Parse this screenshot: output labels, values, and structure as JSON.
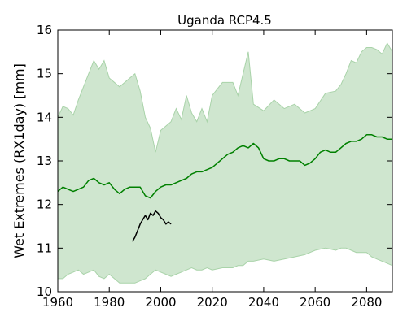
{
  "chart_data": {
    "type": "area",
    "title": "Uganda  RCP4.5",
    "xlabel": "",
    "ylabel": "Wet Extremes (RX1day) [mm]",
    "xlim": [
      1960,
      2090
    ],
    "ylim": [
      10,
      16
    ],
    "xticks": [
      1960,
      1980,
      2000,
      2020,
      2040,
      2060,
      2080
    ],
    "yticks": [
      10,
      11,
      12,
      13,
      14,
      15,
      16
    ],
    "grid": false,
    "legend": "none",
    "colors": {
      "band_fill": "#cfe6cf",
      "band_edge": "#a9d3a9",
      "median_line": "#008000",
      "observed_line": "#000000",
      "frame": "#000000"
    },
    "series": [
      {
        "kind": "band",
        "x": [
          1960,
          1962,
          1964,
          1966,
          1968,
          1970,
          1972,
          1974,
          1976,
          1978,
          1980,
          1984,
          1988,
          1990,
          1992,
          1994,
          1996,
          1998,
          2000,
          2002,
          2004,
          2006,
          2008,
          2010,
          2012,
          2014,
          2016,
          2018,
          2020,
          2024,
          2028,
          2030,
          2032,
          2034,
          2036,
          2040,
          2044,
          2048,
          2052,
          2056,
          2060,
          2064,
          2068,
          2070,
          2072,
          2074,
          2076,
          2078,
          2080,
          2082,
          2084,
          2086,
          2088,
          2090
        ],
        "upper": [
          14.0,
          14.25,
          14.2,
          14.05,
          14.4,
          14.7,
          15.0,
          15.3,
          15.1,
          15.3,
          14.9,
          14.7,
          14.9,
          15.0,
          14.6,
          14.0,
          13.75,
          13.2,
          13.7,
          13.8,
          13.9,
          14.2,
          13.95,
          14.5,
          14.1,
          13.9,
          14.2,
          13.9,
          14.5,
          14.8,
          14.8,
          14.5,
          15.0,
          15.5,
          14.3,
          14.15,
          14.4,
          14.2,
          14.3,
          14.1,
          14.2,
          14.55,
          14.6,
          14.75,
          15.0,
          15.3,
          15.25,
          15.5,
          15.6,
          15.6,
          15.55,
          15.45,
          15.7,
          15.5
        ],
        "lower": [
          10.3,
          10.3,
          10.4,
          10.45,
          10.5,
          10.4,
          10.45,
          10.5,
          10.35,
          10.3,
          10.4,
          10.2,
          10.2,
          10.2,
          10.25,
          10.3,
          10.4,
          10.5,
          10.45,
          10.4,
          10.35,
          10.4,
          10.45,
          10.5,
          10.55,
          10.5,
          10.5,
          10.55,
          10.5,
          10.55,
          10.55,
          10.6,
          10.6,
          10.7,
          10.7,
          10.75,
          10.7,
          10.75,
          10.8,
          10.85,
          10.95,
          11.0,
          10.95,
          11.0,
          11.0,
          10.95,
          10.9,
          10.9,
          10.9,
          10.8,
          10.75,
          10.7,
          10.65,
          10.6
        ]
      },
      {
        "kind": "line",
        "x": [
          1960,
          1962,
          1964,
          1966,
          1968,
          1970,
          1972,
          1974,
          1976,
          1978,
          1980,
          1982,
          1984,
          1986,
          1988,
          1990,
          1992,
          1994,
          1996,
          1998,
          2000,
          2002,
          2004,
          2006,
          2008,
          2010,
          2012,
          2014,
          2016,
          2018,
          2020,
          2022,
          2024,
          2026,
          2028,
          2030,
          2032,
          2034,
          2036,
          2038,
          2040,
          2042,
          2044,
          2046,
          2048,
          2050,
          2052,
          2054,
          2056,
          2058,
          2060,
          2062,
          2064,
          2066,
          2068,
          2070,
          2072,
          2074,
          2076,
          2078,
          2080,
          2082,
          2084,
          2086,
          2088,
          2090
        ],
        "values": [
          12.3,
          12.4,
          12.35,
          12.3,
          12.35,
          12.4,
          12.55,
          12.6,
          12.5,
          12.45,
          12.5,
          12.35,
          12.25,
          12.35,
          12.4,
          12.4,
          12.4,
          12.2,
          12.15,
          12.3,
          12.4,
          12.45,
          12.45,
          12.5,
          12.55,
          12.6,
          12.7,
          12.75,
          12.75,
          12.8,
          12.85,
          12.95,
          13.05,
          13.15,
          13.2,
          13.3,
          13.35,
          13.3,
          13.4,
          13.3,
          13.05,
          13.0,
          13.0,
          13.05,
          13.05,
          13.0,
          13.0,
          13.0,
          12.9,
          12.95,
          13.05,
          13.2,
          13.25,
          13.2,
          13.2,
          13.3,
          13.4,
          13.45,
          13.45,
          13.5,
          13.6,
          13.6,
          13.55,
          13.55,
          13.5,
          13.5
        ]
      },
      {
        "kind": "observed",
        "x": [
          1989,
          1990,
          1991,
          1992,
          1993,
          1994,
          1995,
          1996,
          1997,
          1998,
          1999,
          2000,
          2001,
          2002,
          2003,
          2004
        ],
        "values": [
          11.15,
          11.25,
          11.4,
          11.55,
          11.65,
          11.75,
          11.65,
          11.8,
          11.75,
          11.85,
          11.8,
          11.7,
          11.65,
          11.55,
          11.6,
          11.55
        ]
      }
    ]
  }
}
